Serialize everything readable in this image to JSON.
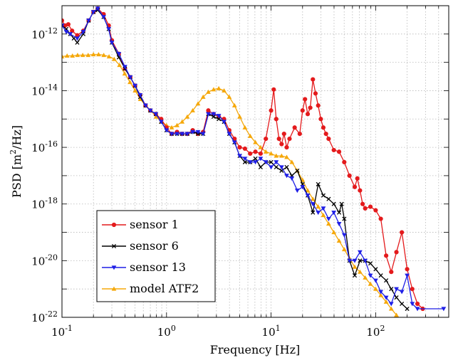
{
  "chart_data": {
    "type": "line",
    "title": "",
    "xlabel": "Frequency [Hz]",
    "ylabel": "PSD [m²/Hz]",
    "ylabel_base": "PSD [m",
    "ylabel_sup": "2",
    "ylabel_tail": "/Hz]",
    "xscale": "log",
    "yscale": "log",
    "xlim": [
      0.1,
      500
    ],
    "ylim": [
      1e-22,
      1e-11
    ],
    "grid": true,
    "legend_position": "bottom-left",
    "x_ticks": [
      {
        "value": 0.1,
        "base": "10",
        "exp": "-1"
      },
      {
        "value": 1,
        "base": "10",
        "exp": "0"
      },
      {
        "value": 10,
        "base": "10",
        "exp": "1"
      },
      {
        "value": 100,
        "base": "10",
        "exp": "2"
      }
    ],
    "y_ticks": [
      {
        "value": 1e-22,
        "base": "10",
        "exp": "-22"
      },
      {
        "value": 1e-20,
        "base": "10",
        "exp": "-20"
      },
      {
        "value": 1e-18,
        "base": "10",
        "exp": "-18"
      },
      {
        "value": 1e-16,
        "base": "10",
        "exp": "-16"
      },
      {
        "value": 1e-14,
        "base": "10",
        "exp": "-14"
      },
      {
        "value": 1e-12,
        "base": "10",
        "exp": "-12"
      }
    ],
    "series": [
      {
        "name": "sensor 1",
        "color": "#e41a1c",
        "marker": "circle",
        "points": [
          [
            0.1,
            3e-12
          ],
          [
            0.107,
            2e-12
          ],
          [
            0.115,
            2.2e-12
          ],
          [
            0.125,
            1.3e-12
          ],
          [
            0.14,
            9e-13
          ],
          [
            0.16,
            1.3e-12
          ],
          [
            0.18,
            3e-12
          ],
          [
            0.2,
            6e-12
          ],
          [
            0.22,
            8e-12
          ],
          [
            0.25,
            5e-12
          ],
          [
            0.28,
            2e-12
          ],
          [
            0.3,
            6e-13
          ],
          [
            0.35,
            2e-13
          ],
          [
            0.4,
            6e-14
          ],
          [
            0.45,
            3e-14
          ],
          [
            0.5,
            1.5e-14
          ],
          [
            0.56,
            7e-15
          ],
          [
            0.63,
            3e-15
          ],
          [
            0.7,
            2e-15
          ],
          [
            0.79,
            1.5e-15
          ],
          [
            0.89,
            1e-15
          ],
          [
            1.0,
            5e-16
          ],
          [
            1.12,
            3e-16
          ],
          [
            1.26,
            3.5e-16
          ],
          [
            1.41,
            3e-16
          ],
          [
            1.58,
            3e-16
          ],
          [
            1.78,
            4e-16
          ],
          [
            2.0,
            3e-16
          ],
          [
            2.24,
            3.5e-16
          ],
          [
            2.51,
            2e-15
          ],
          [
            2.82,
            1.5e-15
          ],
          [
            3.16,
            1.2e-15
          ],
          [
            3.55,
            1e-15
          ],
          [
            3.98,
            4e-16
          ],
          [
            4.47,
            2e-16
          ],
          [
            5.01,
            1e-16
          ],
          [
            5.62,
            9e-17
          ],
          [
            6.31,
            6e-17
          ],
          [
            7.08,
            7e-17
          ],
          [
            7.94,
            6e-17
          ],
          [
            8.91,
            2e-16
          ],
          [
            10.0,
            2e-15
          ],
          [
            10.6,
            1.1e-14
          ],
          [
            11.2,
            1e-15
          ],
          [
            11.9,
            2e-16
          ],
          [
            12.6,
            1.3e-16
          ],
          [
            13.3,
            3e-16
          ],
          [
            14.1,
            1e-16
          ],
          [
            15.0,
            2e-16
          ],
          [
            16.8,
            5e-16
          ],
          [
            18.8,
            3e-16
          ],
          [
            20.0,
            2e-15
          ],
          [
            21.1,
            5e-15
          ],
          [
            22.4,
            1.5e-15
          ],
          [
            23.7,
            2.5e-15
          ],
          [
            25.1,
            2.5e-14
          ],
          [
            26.6,
            8e-15
          ],
          [
            28.2,
            3e-15
          ],
          [
            29.9,
            1e-15
          ],
          [
            31.6,
            5e-16
          ],
          [
            33.5,
            3e-16
          ],
          [
            35.5,
            2e-16
          ],
          [
            39.8,
            8e-17
          ],
          [
            44.7,
            7e-17
          ],
          [
            50.1,
            3e-17
          ],
          [
            56.2,
            1e-17
          ],
          [
            63.1,
            4e-18
          ],
          [
            66.8,
            8e-18
          ],
          [
            70.8,
            3e-18
          ],
          [
            75.0,
            1e-18
          ],
          [
            79.4,
            7e-19
          ],
          [
            89.1,
            8e-19
          ],
          [
            100,
            6e-19
          ],
          [
            112,
            3e-19
          ],
          [
            126,
            1.5e-20
          ],
          [
            141,
            4e-21
          ],
          [
            158,
            2e-20
          ],
          [
            178,
            1e-19
          ],
          [
            200,
            5e-21
          ],
          [
            224,
            1e-21
          ],
          [
            251,
            3e-22
          ],
          [
            282,
            2e-22
          ]
        ]
      },
      {
        "name": "sensor 6",
        "color": "#000000",
        "marker": "x",
        "points": [
          [
            0.1,
            2e-12
          ],
          [
            0.11,
            1.5e-12
          ],
          [
            0.12,
            1e-12
          ],
          [
            0.13,
            7e-13
          ],
          [
            0.14,
            5e-13
          ],
          [
            0.16,
            1e-12
          ],
          [
            0.18,
            3e-12
          ],
          [
            0.2,
            6e-12
          ],
          [
            0.22,
            7e-12
          ],
          [
            0.25,
            4e-12
          ],
          [
            0.28,
            1.5e-12
          ],
          [
            0.3,
            5e-13
          ],
          [
            0.35,
            1.5e-13
          ],
          [
            0.4,
            6e-14
          ],
          [
            0.45,
            3e-14
          ],
          [
            0.5,
            1.5e-14
          ],
          [
            0.56,
            6e-15
          ],
          [
            0.63,
            3e-15
          ],
          [
            0.7,
            2e-15
          ],
          [
            0.79,
            1.5e-15
          ],
          [
            0.89,
            8e-16
          ],
          [
            1.0,
            4e-16
          ],
          [
            1.12,
            3e-16
          ],
          [
            1.26,
            3e-16
          ],
          [
            1.41,
            3e-16
          ],
          [
            1.58,
            3e-16
          ],
          [
            1.78,
            3.5e-16
          ],
          [
            2.0,
            3e-16
          ],
          [
            2.24,
            3e-16
          ],
          [
            2.51,
            1.5e-15
          ],
          [
            2.82,
            1.2e-15
          ],
          [
            3.16,
            1e-15
          ],
          [
            3.55,
            8e-16
          ],
          [
            3.98,
            3e-16
          ],
          [
            4.47,
            1.5e-16
          ],
          [
            5.01,
            5e-17
          ],
          [
            5.62,
            3e-17
          ],
          [
            6.31,
            3e-17
          ],
          [
            7.08,
            4e-17
          ],
          [
            7.94,
            2e-17
          ],
          [
            8.91,
            3e-17
          ],
          [
            10.0,
            3e-17
          ],
          [
            11.2,
            2e-17
          ],
          [
            12.6,
            1.5e-17
          ],
          [
            14.1,
            2e-17
          ],
          [
            15.8,
            1e-17
          ],
          [
            17.8,
            1.5e-17
          ],
          [
            20.0,
            5e-18
          ],
          [
            22.4,
            2e-18
          ],
          [
            25.1,
            5e-19
          ],
          [
            28.2,
            5e-18
          ],
          [
            31.6,
            2e-18
          ],
          [
            35.5,
            1.5e-18
          ],
          [
            39.8,
            1e-18
          ],
          [
            44.7,
            5e-19
          ],
          [
            47.3,
            1e-18
          ],
          [
            50.1,
            3e-19
          ],
          [
            56.2,
            1e-20
          ],
          [
            63.1,
            3e-21
          ],
          [
            70.8,
            1e-20
          ],
          [
            79.4,
            1e-20
          ],
          [
            89.1,
            8e-21
          ],
          [
            100,
            5e-21
          ],
          [
            112,
            3e-21
          ],
          [
            126,
            2e-21
          ],
          [
            141,
            1e-21
          ],
          [
            158,
            5e-22
          ],
          [
            178,
            3e-22
          ],
          [
            200,
            2e-22
          ]
        ]
      },
      {
        "name": "sensor 13",
        "color": "#1f1fe6",
        "marker": "triangle-down",
        "points": [
          [
            0.1,
            2e-12
          ],
          [
            0.11,
            1.2e-12
          ],
          [
            0.12,
            1e-12
          ],
          [
            0.14,
            7e-13
          ],
          [
            0.16,
            1.2e-12
          ],
          [
            0.18,
            3e-12
          ],
          [
            0.2,
            6e-12
          ],
          [
            0.22,
            8e-12
          ],
          [
            0.25,
            4e-12
          ],
          [
            0.28,
            1.5e-12
          ],
          [
            0.3,
            5e-13
          ],
          [
            0.35,
            2e-13
          ],
          [
            0.4,
            7e-14
          ],
          [
            0.45,
            3e-14
          ],
          [
            0.5,
            1.5e-14
          ],
          [
            0.56,
            7e-15
          ],
          [
            0.63,
            3e-15
          ],
          [
            0.7,
            2e-15
          ],
          [
            0.79,
            1.5e-15
          ],
          [
            0.89,
            8e-16
          ],
          [
            1.0,
            4e-16
          ],
          [
            1.12,
            3e-16
          ],
          [
            1.26,
            3e-16
          ],
          [
            1.41,
            3e-16
          ],
          [
            1.58,
            3e-16
          ],
          [
            1.78,
            3.5e-16
          ],
          [
            2.0,
            3.5e-16
          ],
          [
            2.24,
            3e-16
          ],
          [
            2.51,
            1.5e-15
          ],
          [
            2.82,
            1.5e-15
          ],
          [
            3.16,
            1.3e-15
          ],
          [
            3.55,
            8e-16
          ],
          [
            3.98,
            3e-16
          ],
          [
            4.47,
            1.5e-16
          ],
          [
            5.01,
            5e-17
          ],
          [
            5.62,
            4e-17
          ],
          [
            6.31,
            3e-17
          ],
          [
            7.08,
            3e-17
          ],
          [
            7.94,
            4e-17
          ],
          [
            8.91,
            3e-17
          ],
          [
            10.0,
            2e-17
          ],
          [
            11.2,
            3e-17
          ],
          [
            12.6,
            2e-17
          ],
          [
            14.1,
            1e-17
          ],
          [
            15.8,
            8e-18
          ],
          [
            17.8,
            3e-18
          ],
          [
            20.0,
            4e-18
          ],
          [
            22.4,
            2e-18
          ],
          [
            25.1,
            1e-18
          ],
          [
            28.2,
            5e-19
          ],
          [
            31.6,
            7e-19
          ],
          [
            35.5,
            3e-19
          ],
          [
            39.8,
            5e-19
          ],
          [
            44.7,
            2e-19
          ],
          [
            50.1,
            8e-20
          ],
          [
            56.2,
            1e-20
          ],
          [
            63.1,
            1e-20
          ],
          [
            70.8,
            2e-20
          ],
          [
            79.4,
            1e-20
          ],
          [
            89.1,
            3e-21
          ],
          [
            100,
            2e-21
          ],
          [
            112,
            8e-22
          ],
          [
            126,
            5e-22
          ],
          [
            141,
            3e-22
          ],
          [
            158,
            1e-21
          ],
          [
            178,
            8e-22
          ],
          [
            200,
            3e-21
          ],
          [
            224,
            3e-22
          ],
          [
            251,
            2e-22
          ],
          [
            447,
            2e-22
          ]
        ]
      },
      {
        "name": "model ATF2",
        "color": "#f5a80a",
        "marker": "triangle-up",
        "points": [
          [
            0.1,
            1.6e-13
          ],
          [
            0.112,
            1.7e-13
          ],
          [
            0.126,
            1.7e-13
          ],
          [
            0.141,
            1.8e-13
          ],
          [
            0.158,
            1.8e-13
          ],
          [
            0.178,
            1.8e-13
          ],
          [
            0.2,
            1.9e-13
          ],
          [
            0.224,
            1.9e-13
          ],
          [
            0.251,
            1.8e-13
          ],
          [
            0.282,
            1.6e-13
          ],
          [
            0.316,
            1.3e-13
          ],
          [
            0.355,
            8e-14
          ],
          [
            0.398,
            4e-14
          ],
          [
            0.447,
            2e-14
          ],
          [
            0.501,
            1e-14
          ],
          [
            0.562,
            5e-15
          ],
          [
            0.631,
            3e-15
          ],
          [
            0.708,
            2e-15
          ],
          [
            0.794,
            1.2e-15
          ],
          [
            0.891,
            8e-16
          ],
          [
            1.0,
            6e-16
          ],
          [
            1.12,
            5e-16
          ],
          [
            1.26,
            6e-16
          ],
          [
            1.41,
            8e-16
          ],
          [
            1.58,
            1.2e-15
          ],
          [
            1.78,
            2e-15
          ],
          [
            2.0,
            3.5e-15
          ],
          [
            2.24,
            6e-15
          ],
          [
            2.51,
            9e-15
          ],
          [
            2.82,
            1.1e-14
          ],
          [
            3.16,
            1.2e-14
          ],
          [
            3.55,
            1e-14
          ],
          [
            3.98,
            6e-15
          ],
          [
            4.47,
            3e-15
          ],
          [
            5.01,
            1.2e-15
          ],
          [
            5.62,
            5e-16
          ],
          [
            6.31,
            2.5e-16
          ],
          [
            7.08,
            1.5e-16
          ],
          [
            7.94,
            1e-16
          ],
          [
            8.91,
            7e-17
          ],
          [
            10.0,
            6e-17
          ],
          [
            11.2,
            5e-17
          ],
          [
            12.6,
            5e-17
          ],
          [
            14.1,
            4.5e-17
          ],
          [
            15.8,
            3e-17
          ],
          [
            17.8,
            1.5e-17
          ],
          [
            20.0,
            7e-18
          ],
          [
            22.4,
            3e-18
          ],
          [
            25.1,
            1.5e-18
          ],
          [
            28.2,
            8e-19
          ],
          [
            31.6,
            4e-19
          ],
          [
            35.5,
            2e-19
          ],
          [
            39.8,
            1e-19
          ],
          [
            44.7,
            5e-20
          ],
          [
            50.1,
            2.5e-20
          ],
          [
            56.2,
            1.2e-20
          ],
          [
            63.1,
            6e-21
          ],
          [
            70.8,
            4e-21
          ],
          [
            79.4,
            2.5e-21
          ],
          [
            89.1,
            1.5e-21
          ],
          [
            100,
            1e-21
          ],
          [
            112,
            6e-22
          ],
          [
            126,
            3.5e-22
          ],
          [
            141,
            2e-22
          ],
          [
            158,
            1.2e-22
          ]
        ]
      }
    ]
  }
}
